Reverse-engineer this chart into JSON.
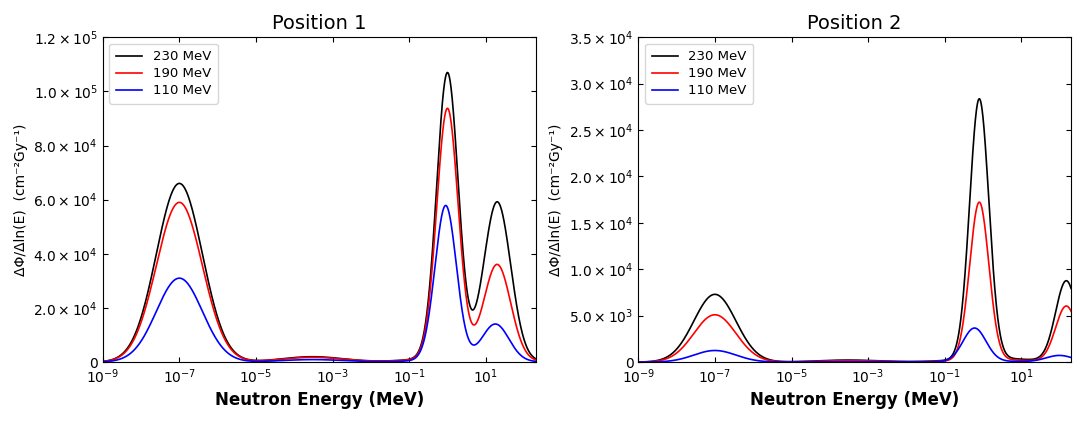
{
  "title1": "Position 1",
  "title2": "Position 2",
  "xlabel": "Neutron Energy (MeV)",
  "ylabel": "ΔΦ/Δln(E)  (cm⁻²Gy⁻¹)",
  "legend_labels": [
    "230 MeV",
    "190 MeV",
    "110 MeV"
  ],
  "colors": [
    "black",
    "red",
    "blue"
  ],
  "xlim": [
    1e-09,
    200.0
  ],
  "ylim1": [
    0,
    120000.0
  ],
  "ylim2": [
    0,
    35000.0
  ],
  "yticks1": [
    0,
    20000.0,
    40000.0,
    60000.0,
    80000.0,
    100000.0,
    120000.0
  ],
  "yticks2": [
    0,
    5000.0,
    10000.0,
    15000.0,
    20000.0,
    25000.0,
    30000.0,
    35000.0
  ]
}
